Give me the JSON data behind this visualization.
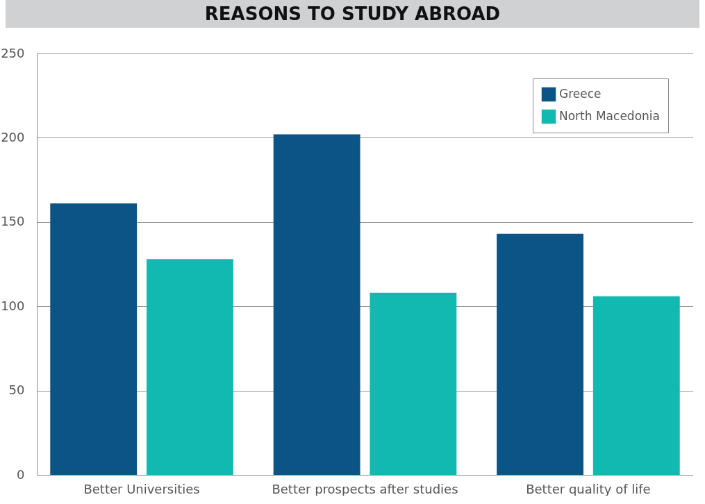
{
  "chart_data": {
    "type": "bar",
    "title": "REASONS TO STUDY ABROAD",
    "categories": [
      "Better Universities",
      "Better prospects after studies",
      "Better quality of life"
    ],
    "series": [
      {
        "name": "Greece",
        "color": "#0a5585",
        "values": [
          161,
          202,
          143
        ]
      },
      {
        "name": "North Macedonia",
        "color": "#12b9b1",
        "values": [
          128,
          108,
          106
        ]
      }
    ],
    "ylim": [
      0,
      250
    ],
    "yticks": [
      0,
      50,
      100,
      150,
      200,
      250
    ],
    "grid": "y",
    "legend": "top right"
  }
}
